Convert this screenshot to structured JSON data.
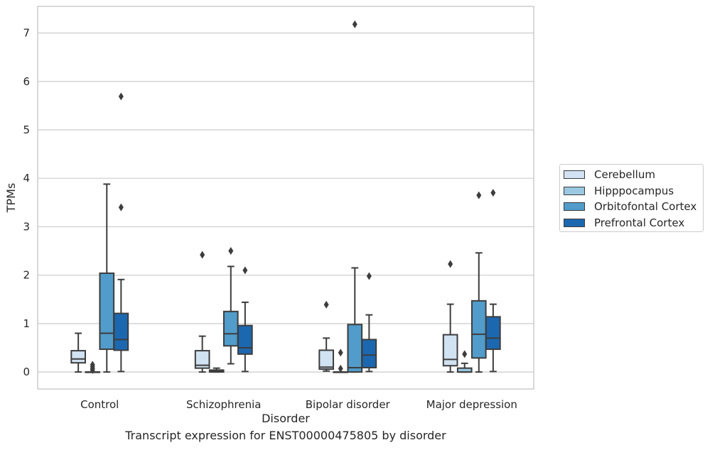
{
  "chart_data": {
    "type": "box",
    "title": "",
    "caption": "Transcript expression for ENST00000475805 by disorder",
    "xlabel": "Disorder",
    "ylabel": "TPMs",
    "ylim": [
      -0.35,
      7.55
    ],
    "yticks": [
      0,
      1,
      2,
      3,
      4,
      5,
      6,
      7
    ],
    "grid": true,
    "legend_position": "right",
    "categories": [
      "Control",
      "Schizophrenia",
      "Bipolar disorder",
      "Major depression"
    ],
    "series": [
      {
        "name": "Cerebellum",
        "color": "#d1e2f2",
        "boxes": [
          {
            "whislo": 0.0,
            "q1": 0.19,
            "med": 0.27,
            "q3": 0.44,
            "whishi": 0.8,
            "fliers": []
          },
          {
            "whislo": 0.0,
            "q1": 0.08,
            "med": 0.14,
            "q3": 0.44,
            "whishi": 0.74,
            "fliers": [
              2.42
            ]
          },
          {
            "whislo": 0.02,
            "q1": 0.06,
            "med": 0.1,
            "q3": 0.45,
            "whishi": 0.7,
            "fliers": [
              1.39
            ]
          },
          {
            "whislo": 0.0,
            "q1": 0.13,
            "med": 0.26,
            "q3": 0.77,
            "whishi": 1.4,
            "fliers": [
              2.23
            ]
          }
        ]
      },
      {
        "name": "Hipppocampus",
        "color": "#9ac8e0",
        "boxes": [
          {
            "whislo": 0.0,
            "q1": 0.0,
            "med": 0.0,
            "q3": 0.0,
            "whishi": 0.0,
            "fliers": [
              0.15,
              0.11,
              0.07,
              0.04
            ]
          },
          {
            "whislo": 0.0,
            "q1": 0.0,
            "med": 0.02,
            "q3": 0.04,
            "whishi": 0.08,
            "fliers": []
          },
          {
            "whislo": 0.0,
            "q1": 0.0,
            "med": 0.0,
            "q3": 0.0,
            "whishi": 0.0,
            "fliers": [
              0.4,
              0.07
            ]
          },
          {
            "whislo": 0.0,
            "q1": 0.0,
            "med": 0.0,
            "q3": 0.08,
            "whishi": 0.18,
            "fliers": [
              0.37
            ]
          }
        ]
      },
      {
        "name": "Orbitofontal Cortex",
        "color": "#519cca",
        "boxes": [
          {
            "whislo": 0.0,
            "q1": 0.47,
            "med": 0.8,
            "q3": 2.04,
            "whishi": 3.88,
            "fliers": []
          },
          {
            "whislo": 0.17,
            "q1": 0.54,
            "med": 0.79,
            "q3": 1.25,
            "whishi": 2.18,
            "fliers": [
              2.5
            ]
          },
          {
            "whislo": 0.0,
            "q1": 0.0,
            "med": 0.09,
            "q3": 0.98,
            "whishi": 2.15,
            "fliers": [
              7.18
            ]
          },
          {
            "whislo": 0.0,
            "q1": 0.29,
            "med": 0.78,
            "q3": 1.47,
            "whishi": 2.46,
            "fliers": [
              3.65
            ]
          }
        ]
      },
      {
        "name": "Prefrontal Cortex",
        "color": "#1c68b0",
        "boxes": [
          {
            "whislo": 0.01,
            "q1": 0.45,
            "med": 0.67,
            "q3": 1.21,
            "whishi": 1.91,
            "fliers": [
              3.4,
              5.69
            ]
          },
          {
            "whislo": 0.01,
            "q1": 0.37,
            "med": 0.5,
            "q3": 0.96,
            "whishi": 1.44,
            "fliers": [
              2.1
            ]
          },
          {
            "whislo": 0.01,
            "q1": 0.09,
            "med": 0.35,
            "q3": 0.67,
            "whishi": 1.18,
            "fliers": [
              1.98
            ]
          },
          {
            "whislo": 0.01,
            "q1": 0.47,
            "med": 0.7,
            "q3": 1.14,
            "whishi": 1.4,
            "fliers": [
              3.7
            ]
          }
        ]
      }
    ]
  }
}
